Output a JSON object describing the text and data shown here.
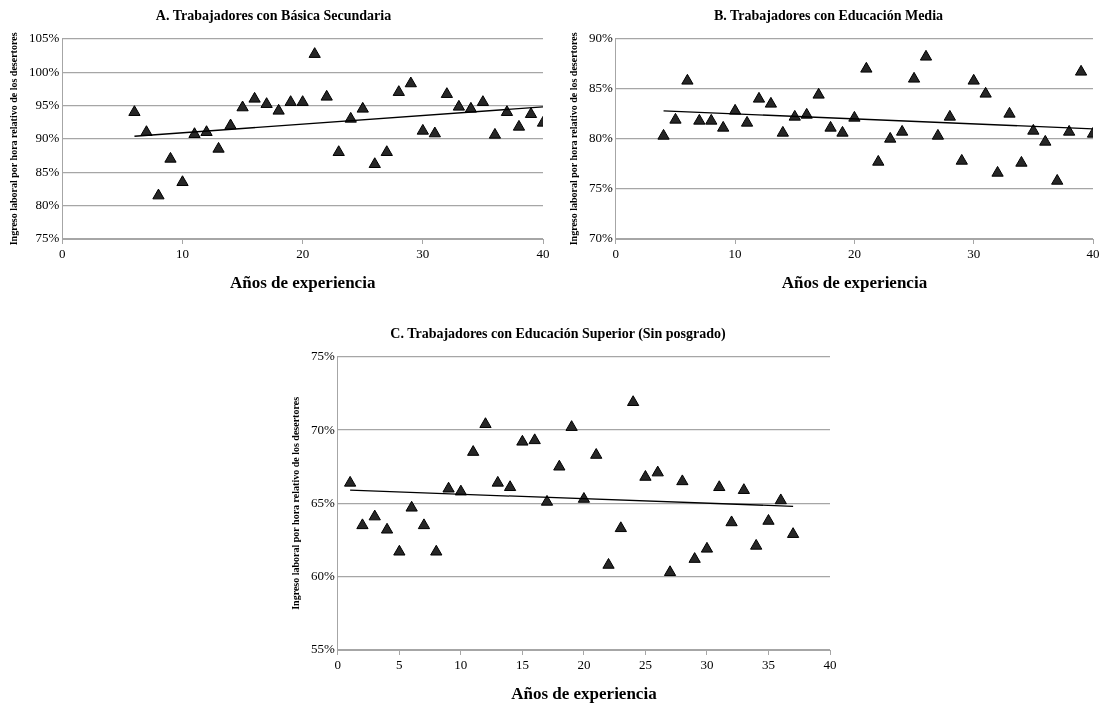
{
  "chart_data": [
    {
      "type": "scatter",
      "title": "A. Trabajadores con Básica Secundaria",
      "xlabel": "Años de experiencia",
      "ylabel": "Ingreso laboral por hora relativo de los desertores",
      "grid": "y",
      "legend": false,
      "xlim": [
        0,
        40
      ],
      "xticks": [
        0,
        10,
        20,
        30,
        40
      ],
      "ylim": [
        75,
        105
      ],
      "yticks": [
        {
          "value": 75,
          "label": "75%"
        },
        {
          "value": 80,
          "label": "80%"
        },
        {
          "value": 85,
          "label": "85%"
        },
        {
          "value": 90,
          "label": "90%"
        },
        {
          "value": 95,
          "label": "95%"
        },
        {
          "value": 100,
          "label": "100%"
        },
        {
          "value": 105,
          "label": "105%"
        }
      ],
      "series": [
        {
          "marker": "triangle",
          "color": "#262626",
          "x": [
            6,
            7,
            8,
            9,
            10,
            11,
            12,
            13,
            14,
            15,
            16,
            17,
            18,
            19,
            20,
            21,
            22,
            23,
            24,
            25,
            26,
            27,
            28,
            29,
            30,
            31,
            32,
            33,
            34,
            35,
            36,
            37,
            38,
            39,
            40
          ],
          "values": [
            94,
            91,
            81.5,
            87,
            83.5,
            90.7,
            91,
            88.5,
            92,
            94.7,
            96,
            95.2,
            94.2,
            95.5,
            95.5,
            102.7,
            96.3,
            88,
            93,
            94.5,
            86.2,
            88,
            97,
            98.3,
            91.2,
            90.8,
            96.7,
            94.8,
            94.5,
            95.5,
            90.6,
            94,
            91.8,
            93.7,
            92.4
          ]
        },
        {
          "type": "line",
          "marker": "none",
          "color": "#000000",
          "x": [
            6,
            40
          ],
          "values": [
            90.4,
            94.8
          ]
        }
      ]
    },
    {
      "type": "scatter",
      "title": "B. Trabajadores con Educación Media",
      "xlabel": "Años de experiencia",
      "ylabel": "Ingreso laboral por hora relativo de los desertores",
      "grid": "y",
      "legend": false,
      "xlim": [
        0,
        40
      ],
      "xticks": [
        0,
        10,
        20,
        30,
        40
      ],
      "ylim": [
        70,
        90
      ],
      "yticks": [
        {
          "value": 70,
          "label": "70%"
        },
        {
          "value": 75,
          "label": "75%"
        },
        {
          "value": 80,
          "label": "80%"
        },
        {
          "value": 85,
          "label": "85%"
        },
        {
          "value": 90,
          "label": "90%"
        }
      ],
      "series": [
        {
          "marker": "triangle",
          "color": "#262626",
          "x": [
            4,
            5,
            6,
            7,
            8,
            9,
            10,
            11,
            12,
            13,
            14,
            15,
            16,
            17,
            18,
            19,
            20,
            21,
            22,
            23,
            24,
            25,
            26,
            27,
            28,
            29,
            30,
            31,
            32,
            33,
            34,
            35,
            36,
            37,
            38,
            39,
            40
          ],
          "values": [
            80.3,
            81.9,
            85.8,
            81.8,
            81.8,
            81.1,
            82.8,
            81.6,
            84,
            83.5,
            80.6,
            82.2,
            82.4,
            84.4,
            81.1,
            80.6,
            82.1,
            87,
            77.7,
            80,
            80.7,
            86,
            88.2,
            80.3,
            82.2,
            77.8,
            85.8,
            84.5,
            76.6,
            82.5,
            77.6,
            80.8,
            79.7,
            75.8,
            80.7,
            86.7,
            80.5
          ]
        },
        {
          "type": "line",
          "marker": "none",
          "color": "#000000",
          "x": [
            4,
            40
          ],
          "values": [
            82.8,
            81
          ]
        }
      ]
    },
    {
      "type": "scatter",
      "title": "C. Trabajadores con Educación Superior (Sin posgrado)",
      "xlabel": "Años de experiencia",
      "ylabel": "Ingreso laboral por hora relativo de los desertores",
      "grid": "y",
      "legend": false,
      "xlim": [
        0,
        40
      ],
      "xticks": [
        0,
        5,
        10,
        15,
        20,
        25,
        30,
        35,
        40
      ],
      "ylim": [
        55,
        75
      ],
      "yticks": [
        {
          "value": 55,
          "label": "55%"
        },
        {
          "value": 60,
          "label": "60%"
        },
        {
          "value": 65,
          "label": "65%"
        },
        {
          "value": 70,
          "label": "70%"
        },
        {
          "value": 75,
          "label": "75%"
        }
      ],
      "series": [
        {
          "marker": "triangle",
          "color": "#262626",
          "x": [
            1,
            2,
            3,
            4,
            5,
            6,
            7,
            8,
            9,
            10,
            11,
            12,
            13,
            14,
            15,
            16,
            17,
            18,
            19,
            20,
            21,
            22,
            23,
            24,
            25,
            26,
            27,
            28,
            29,
            30,
            31,
            32,
            33,
            34,
            35,
            36,
            37
          ],
          "values": [
            66.4,
            63.5,
            64.1,
            63.2,
            61.7,
            64.7,
            63.5,
            61.7,
            66,
            65.8,
            68.5,
            70.4,
            66.4,
            66.1,
            69.2,
            69.3,
            65.1,
            67.5,
            70.2,
            65.3,
            68.3,
            60.8,
            63.3,
            71.9,
            66.8,
            67.1,
            60.3,
            66.5,
            61.2,
            61.9,
            66.1,
            63.7,
            65.9,
            62.1,
            63.8,
            65.2,
            62.9
          ]
        },
        {
          "type": "line",
          "marker": "none",
          "color": "#000000",
          "x": [
            1,
            37
          ],
          "values": [
            65.9,
            64.8
          ]
        }
      ]
    }
  ]
}
